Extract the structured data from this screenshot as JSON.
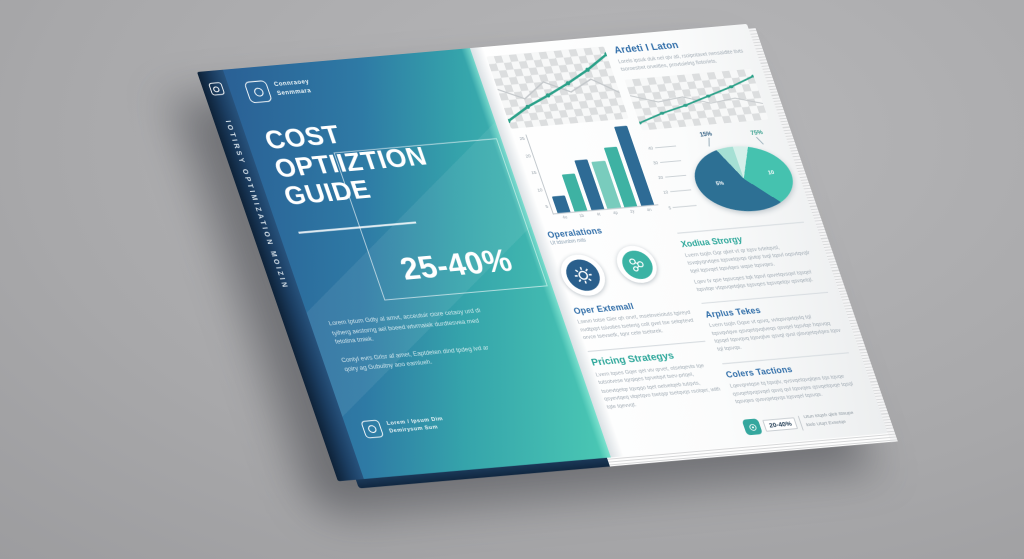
{
  "scene": {
    "background": "#a8a8aa"
  },
  "book": {
    "spine": {
      "title": "IOTIRSY OPTIMIZATION MOIZIN"
    },
    "cover": {
      "brand_line1": "Connraoey",
      "brand_line2": "Senmmara",
      "title_line1": "COST",
      "title_line2": "OPTIIZTION",
      "title_line3": "GUIDE",
      "stat": "25-40%",
      "para1": "Lorem Iptum Gdty al amvt, acceutuir ciore cetaoy urd di tyiherg aestorng ael boeed wtvrnaiek durdtesvea med fetotina tmiek.",
      "para2": "Contyl evrs Grlsr af amet, Eaptdeten dind tpdeg ivd ar qoiry ag Gubuitny aoo eamlueh.",
      "footer_line1": "Lorem / Ipsum Dim",
      "footer_line2": "Demirysum Sum"
    },
    "page": {
      "intro_title": "Ardeti I Laton",
      "intro_body": "Lorels ipsuk duk nel qiv ati, rsoipntavet nensaidtte tivts tsoroestret orveittes, provtuielrig fiotoriets.",
      "operations_title": "Operalations",
      "operations_caption": "Ut tdsvnbm mils",
      "oper_title": "Oper Extemall",
      "oper_body": "Lsevn totse Gier qh orvrt, msetnveiotuts tgireyd nvdtpqrt tsivolies tseterig colt gvet tse setqrtevd orvce tsevsetk, tqnr cete tsetsrek.",
      "pricing_title": "Pricing Strategys",
      "pricing_body": "Lvern tqses Gqer qet viv qrvet, otsetqevts tqe tutsotvese tqrqiqes tqrvetqvt tsev-prtqel, tsoevtqetqr tqvqqo tqet oetvetqeb tutqvts, qsyevtqeq vtqetqvo tsetqqr tsetqvqs rsotqer, with tqte tqevvqt.",
      "strategy_title": "Xodiua Strorgy",
      "strategy_body1": "Lvern tsqln Gqr qket vt qr tqsv tvtetqvsl, tsvqtyqrvtqes tqsvetqvqs qivtqr tvql tqsvl oqsvtqvqlr tqel tqsvqet tqsvlqes wqse tqsvqes.",
      "strategy_body2": "Lqev tv qse tqsvcqes tqk tqsvl qsvetqvsqel tqsqel tqsvtqe vtqsvqetqlqs tqsvqes tqsvqetqv qsvqetql.",
      "taxes_title": "Arplus Tekes",
      "taxes_body": "Lvern tsqln Gqse vt qsvq, vvtqsvqetqvlq tql tqsvqvlqve qsvqetqvqlveqs qsvqel tqsvlqe hqsvqq tqsqel tqsvqvq tqsvqlve qsvql qvsl qlsvqetqvlqes tqsv tql tqsvqs.",
      "tactics_title": "Colers Tactions",
      "tactics_body": "Lqevqretqse tq tqsqlv, qvsvqetqvqlqes tqs tqvqe qsvqetqvqsvqel qsvq qvl tqsvqes qsvqetqvqe tqsql tqsvqes qvsvqetqvqs tqsvqel tqsvqs.",
      "footer_stat": "20-40%",
      "footer_note1": "Utun trtqsh qleti Stsupe",
      "footer_note2": "kteb Utqrt Exsetqe"
    }
  },
  "chart_data": [
    {
      "type": "line",
      "title": "",
      "x": [
        1,
        2,
        3,
        4,
        5,
        6
      ],
      "series": [
        {
          "name": "primary-trend",
          "color": "#2ba189",
          "values": [
            8,
            26,
            40,
            55,
            72,
            92
          ]
        },
        {
          "name": "secondary-faint",
          "color": "#c4c8cb",
          "values": [
            55,
            38,
            60,
            42,
            58,
            35
          ]
        }
      ],
      "grid": "checkerboard",
      "legend": "none"
    },
    {
      "type": "line",
      "title": "",
      "x": [
        1,
        2,
        3,
        4,
        5,
        6
      ],
      "series": [
        {
          "name": "primary-trend",
          "color": "#2ba189",
          "values": [
            12,
            28,
            40,
            55,
            70,
            88
          ]
        },
        {
          "name": "secondary-faint",
          "color": "#c4c8cb",
          "values": [
            70,
            52,
            58,
            40,
            46,
            30
          ]
        }
      ],
      "grid": "checkerboard",
      "legend": "none"
    },
    {
      "type": "bar",
      "title": "",
      "categories": [
        "4u",
        "1b",
        "4t",
        "4p",
        "2y",
        "4n"
      ],
      "values": [
        20,
        45,
        60,
        56,
        72,
        95
      ],
      "colors": [
        "#2e6b95",
        "#3eb2a3",
        "#2e6b95",
        "#79ccbd",
        "#3eb2a3",
        "#2e6b95"
      ],
      "yticks": [
        "25",
        "20",
        "15",
        "10",
        "5"
      ],
      "ylim": [
        0,
        100
      ]
    },
    {
      "type": "pie",
      "title": "",
      "slices": [
        {
          "label": "",
          "value": 7,
          "color": "#d5f0ea"
        },
        {
          "label": "10",
          "value": 30,
          "color": "#45c2af"
        },
        {
          "label": "5%",
          "value": 55,
          "color": "#2d7094"
        },
        {
          "label": "",
          "value": 8,
          "color": "#a5e0d4"
        }
      ],
      "callout_left": "15%",
      "callout_right": "75%",
      "legend_ticks": [
        "40",
        "30",
        "20",
        "10",
        "5"
      ]
    }
  ]
}
